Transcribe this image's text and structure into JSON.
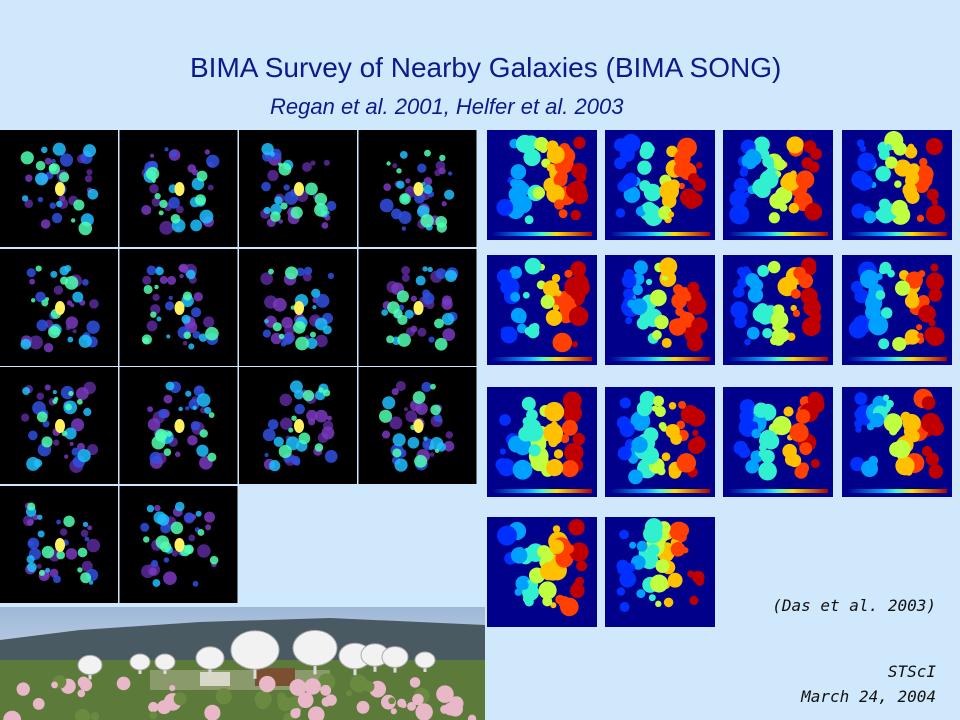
{
  "header": {
    "title": "BIMA Survey of Nearby Galaxies  (BIMA SONG)",
    "subtitle": "Regan et al. 2001, Helfer et al. 2003"
  },
  "caption": "(Das et al. 2003)",
  "footer": {
    "organization": "STScI",
    "date": "March 24, 2004"
  }
}
